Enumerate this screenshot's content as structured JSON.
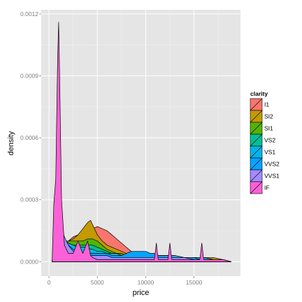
{
  "chart_data": {
    "type": "area",
    "title": "",
    "xlabel": "price",
    "ylabel": "density",
    "xlim": [
      -800,
      19800
    ],
    "ylim": [
      -7e-05,
      0.00122
    ],
    "x_ticks": [
      0,
      5000,
      10000,
      15000
    ],
    "x_tick_labels": [
      "0",
      "5000",
      "10000",
      "15000"
    ],
    "y_ticks": [
      0,
      0.0003,
      0.0006,
      0.0009,
      0.0012
    ],
    "y_tick_labels": [
      "0.0000",
      "0.0003",
      "0.0006",
      "0.0009",
      "0.0012"
    ],
    "grid": true,
    "legend": {
      "title": "clarity",
      "placement": "right"
    },
    "x": [
      326,
      500,
      700,
      900,
      1000,
      1100,
      1300,
      1600,
      2000,
      2500,
      3000,
      3500,
      4000,
      4300,
      4500,
      5000,
      5500,
      6000,
      6500,
      7000,
      7500,
      8000,
      8500,
      9000,
      9500,
      10000,
      10500,
      10900,
      11100,
      11300,
      11800,
      12300,
      12500,
      12700,
      13000,
      14000,
      15000,
      15600,
      15800,
      16000,
      17000,
      18000,
      18823
    ],
    "series": [
      {
        "name": "I1",
        "color": "#F8766D",
        "values": [
          0,
          1e-05,
          3e-05,
          5e-05,
          6e-05,
          6e-05,
          7e-05,
          8e-05,
          0.0001,
          0.00012,
          0.00013,
          0.00014,
          0.00015,
          0.00016,
          0.00016,
          0.00017,
          0.00016,
          0.00015,
          0.00013,
          0.00011,
          9e-05,
          7e-05,
          5e-05,
          4e-05,
          3e-05,
          2e-05,
          2e-05,
          2e-05,
          2e-05,
          2e-05,
          2e-05,
          1e-05,
          1e-05,
          1e-05,
          1e-05,
          1e-05,
          1e-05,
          1e-05,
          1e-05,
          1e-05,
          1e-05,
          1e-05,
          0
        ]
      },
      {
        "name": "SI2",
        "color": "#C49A00",
        "values": [
          0,
          2e-05,
          4e-05,
          6e-05,
          7e-05,
          7e-05,
          8e-05,
          9e-05,
          0.0001,
          0.00011,
          0.00013,
          0.00016,
          0.00019,
          0.0002,
          0.00018,
          0.00013,
          0.0001,
          8e-05,
          7e-05,
          6e-05,
          5e-05,
          4e-05,
          4e-05,
          3e-05,
          3e-05,
          3e-05,
          3e-05,
          3e-05,
          3e-05,
          3e-05,
          3e-05,
          3e-05,
          3e-05,
          3e-05,
          2e-05,
          2e-05,
          2e-05,
          2e-05,
          2e-05,
          2e-05,
          2e-05,
          1e-05,
          0
        ]
      },
      {
        "name": "SI1",
        "color": "#53B400",
        "values": [
          0,
          4e-05,
          7e-05,
          9e-05,
          0.0001,
          0.0001,
          0.0001,
          0.0001,
          0.0001,
          0.0001,
          0.0001,
          0.0001,
          0.00011,
          0.00011,
          0.00011,
          0.0001,
          8e-05,
          6e-05,
          5e-05,
          4e-05,
          4e-05,
          3e-05,
          3e-05,
          3e-05,
          3e-05,
          3e-05,
          3e-05,
          3e-05,
          3e-05,
          3e-05,
          3e-05,
          3e-05,
          3e-05,
          2e-05,
          2e-05,
          2e-05,
          2e-05,
          2e-05,
          2e-05,
          2e-05,
          1e-05,
          1e-05,
          0
        ]
      },
      {
        "name": "VS2",
        "color": "#00C094",
        "values": [
          0,
          6e-05,
          0.0001,
          0.00012,
          0.00012,
          0.00012,
          0.00011,
          0.0001,
          9e-05,
          8e-05,
          8e-05,
          8e-05,
          8e-05,
          8e-05,
          8e-05,
          7e-05,
          6e-05,
          5e-05,
          4e-05,
          4e-05,
          3e-05,
          3e-05,
          3e-05,
          3e-05,
          3e-05,
          3e-05,
          3e-05,
          3e-05,
          3e-05,
          3e-05,
          3e-05,
          3e-05,
          3e-05,
          3e-05,
          3e-05,
          2e-05,
          2e-05,
          2e-05,
          2e-05,
          2e-05,
          1e-05,
          1e-05,
          0
        ]
      },
      {
        "name": "VS1",
        "color": "#00B6EB",
        "values": [
          0,
          7e-05,
          0.00011,
          0.00013,
          0.00013,
          0.00013,
          0.00012,
          0.00011,
          9e-05,
          8e-05,
          7e-05,
          7e-05,
          7e-05,
          6e-05,
          6e-05,
          5e-05,
          5e-05,
          4e-05,
          4e-05,
          4e-05,
          3e-05,
          3e-05,
          3e-05,
          3e-05,
          3e-05,
          3e-05,
          3e-05,
          3e-05,
          3e-05,
          3e-05,
          3e-05,
          3e-05,
          3e-05,
          3e-05,
          3e-05,
          2e-05,
          2e-05,
          2e-05,
          2e-05,
          2e-05,
          1e-05,
          1e-05,
          0
        ]
      },
      {
        "name": "VVS2",
        "color": "#06A4FF",
        "values": [
          0,
          0.0001,
          0.00015,
          0.00017,
          0.00017,
          0.00016,
          0.00014,
          0.00011,
          8e-05,
          6e-05,
          5e-05,
          4e-05,
          4e-05,
          4e-05,
          4e-05,
          4e-05,
          4e-05,
          4e-05,
          3e-05,
          3e-05,
          3e-05,
          4e-05,
          5e-05,
          5e-05,
          5e-05,
          5e-05,
          4e-05,
          4e-05,
          3e-05,
          3e-05,
          3e-05,
          3e-05,
          3e-05,
          2e-05,
          2e-05,
          2e-05,
          2e-05,
          1e-05,
          1e-05,
          1e-05,
          1e-05,
          1e-05,
          0
        ]
      },
      {
        "name": "VVS1",
        "color": "#A58AFF",
        "values": [
          0,
          0.00012,
          0.00018,
          0.0002,
          0.0002,
          0.00019,
          0.00016,
          0.00012,
          8e-05,
          5e-05,
          4e-05,
          3e-05,
          3e-05,
          3e-05,
          3e-05,
          3e-05,
          3e-05,
          3e-05,
          2e-05,
          2e-05,
          2e-05,
          2e-05,
          2e-05,
          2e-05,
          2e-05,
          2e-05,
          2e-05,
          2e-05,
          2e-05,
          2e-05,
          2e-05,
          2e-05,
          2e-05,
          2e-05,
          2e-05,
          2e-05,
          1e-05,
          1e-05,
          1e-05,
          1e-05,
          1e-05,
          1e-05,
          0
        ]
      },
      {
        "name": "IF",
        "color": "#FB61D7",
        "values": [
          0,
          0.00028,
          0.0004,
          0.001,
          0.00116,
          0.0009,
          0.0003,
          8e-05,
          4e-05,
          4e-05,
          0.0001,
          4e-05,
          0.0001,
          3e-05,
          2e-05,
          1e-05,
          1e-05,
          1e-05,
          1e-05,
          1e-05,
          1e-05,
          1e-05,
          1e-05,
          1e-05,
          1e-05,
          1e-05,
          1e-05,
          1e-05,
          9e-05,
          1e-05,
          1e-05,
          1e-05,
          9e-05,
          1e-05,
          1e-05,
          1e-05,
          1e-05,
          1e-05,
          9e-05,
          1e-05,
          1e-05,
          1e-05,
          0
        ]
      }
    ]
  }
}
